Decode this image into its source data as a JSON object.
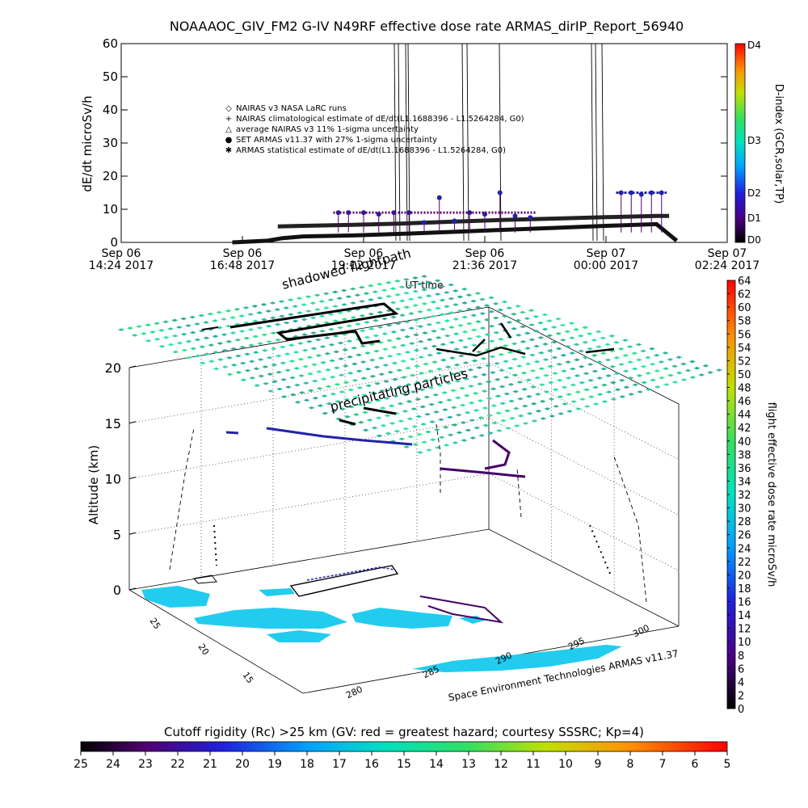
{
  "title": "NOAAAOC_GIV_FM2 G-IV    N49RF   effective dose rate ARMAS_dirIP_Report_56940",
  "top_chart": {
    "ylabel": "dE/dt microSv/h",
    "xlabel": "UT time",
    "right_axis_label": "D-index (GCR,solar,TP)",
    "right_ticks": [
      "D4",
      "D3",
      "D2",
      "D1",
      "D0"
    ],
    "legend": [
      {
        "symbol": "diamond",
        "label": "NAIRAS v3 NASA LaRC runs"
      },
      {
        "symbol": "plus",
        "label": "NAIRAS climatological estimate of dE/dt(L1.1688396 - L1.5264284, G0)"
      },
      {
        "symbol": "triangle",
        "label": "average NAIRAS v3 11% 1-sigma uncertainty"
      },
      {
        "symbol": "dot",
        "label": "SET ARMAS v11.37 with 27% 1-sigma uncertainty"
      },
      {
        "symbol": "asterisk",
        "label": "ARMAS statistical estimate of dE/dt(L1.1688396 - L1.5264284, G0)"
      }
    ]
  },
  "chart_data": [
    {
      "type": "scatter",
      "title": "NOAAAOC_GIV_FM2 G-IV    N49RF   effective dose rate ARMAS_dirIP_Report_56940",
      "xlabel": "UT time",
      "ylabel": "dE/dt microSv/h",
      "ylim": [
        0,
        60
      ],
      "yticks": [
        0,
        10,
        20,
        30,
        40,
        50,
        60
      ],
      "xticks": [
        {
          "day": "Sep 06",
          "time": "14:24 2017"
        },
        {
          "day": "Sep 06",
          "time": "16:48 2017"
        },
        {
          "day": "Sep 06",
          "time": "19:12 2017"
        },
        {
          "day": "Sep 06",
          "time": "21:36 2017"
        },
        {
          "day": "Sep 07",
          "time": "00:00 2017"
        },
        {
          "day": "Sep 07",
          "time": "02:24 2017"
        }
      ],
      "xlim_hours_ut": [
        14.4,
        26.4
      ],
      "series": [
        {
          "name": "NAIRAS climatological estimate of dE/dt(L1.1688396 - L1.5264284, G0)",
          "x": [
            17.5,
            18.0,
            19.0,
            20.0,
            21.0,
            22.0,
            23.0,
            24.0,
            25.0,
            25.25
          ],
          "y": [
            4.8,
            5.0,
            5.3,
            5.7,
            6.3,
            6.8,
            7.2,
            7.6,
            8.0,
            8.0
          ]
        },
        {
          "name": "ARMAS statistical estimate of dE/dt(L1.1688396 - L1.5264284, G0)",
          "x": [
            16.6,
            17.3,
            17.6,
            18.0,
            19.0,
            20.0,
            21.0,
            22.0,
            23.0,
            24.0,
            25.0,
            25.4
          ],
          "y": [
            0.0,
            0.5,
            1.3,
            1.8,
            2.1,
            2.6,
            3.2,
            3.8,
            4.4,
            5.0,
            5.5,
            0.5
          ]
        },
        {
          "name": "SET ARMAS v11.37 with 27% 1-sigma uncertainty",
          "x": [
            18.7,
            18.9,
            19.2,
            19.5,
            19.8,
            20.1,
            20.4,
            20.7,
            21.0,
            21.3,
            21.6,
            21.9,
            22.2,
            22.5,
            24.3,
            24.5,
            24.7,
            24.9,
            25.1
          ],
          "y": [
            9.0,
            9.0,
            9.0,
            8.5,
            9.0,
            9.0,
            6.0,
            13.5,
            6.5,
            9.0,
            8.5,
            15.0,
            8.0,
            7.5,
            15.0,
            15.0,
            14.5,
            15.0,
            15.0
          ]
        }
      ]
    },
    {
      "type": "scatter",
      "title": "flight effective dose rate microSv/h",
      "zlabel": "Altitude (km)",
      "zlim": [
        0,
        20
      ],
      "zticks": [
        0,
        5,
        10,
        15,
        20
      ],
      "lat_ticks": [
        15,
        20,
        25
      ],
      "lon_ticks": [
        280,
        285,
        290,
        295,
        300
      ],
      "colorbar_ticks": [
        0,
        2,
        4,
        6,
        8,
        10,
        12,
        14,
        16,
        18,
        20,
        22,
        24,
        26,
        28,
        30,
        32,
        34,
        36,
        38,
        40,
        42,
        44,
        46,
        48,
        50,
        52,
        54,
        56,
        58,
        60,
        62,
        64
      ],
      "annotations": [
        "shadowed flightpath",
        "precipitating particles"
      ],
      "credit": "Space Environment Technologies ARMAS v11.37"
    }
  ],
  "bottom_colorbar": {
    "label": "Cutoff rigidity (Rc) >25 km (GV: red = greatest hazard; courtesy SSSRC; Kp=4)",
    "ticks": [
      25,
      24,
      23,
      22,
      21,
      20,
      19,
      18,
      17,
      16,
      15,
      14,
      13,
      12,
      11,
      10,
      9,
      8,
      7,
      6,
      5
    ]
  },
  "colors": {
    "grid_field": "#33dd99",
    "land": "#22ccee",
    "track": "#000000",
    "armas": "#2222aa",
    "nairas_clim": "#222222"
  }
}
